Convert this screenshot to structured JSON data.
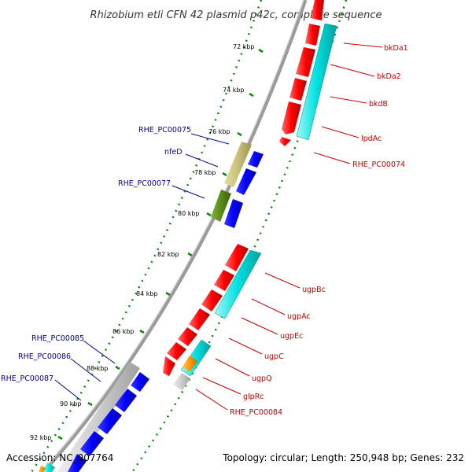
{
  "title": "Rhizobium etli CFN 42 plasmid p42c, complete sequence",
  "accession_label": "Accession: NC_007764",
  "summary_label": "Topology: circular; Length: 250,948 bp; Genes: 232",
  "colors": {
    "forward_gene": "#ff0000",
    "forward_cds": "#00e5e5",
    "reverse_gene": "#0000ff",
    "reverse_cds_olive": "#c8c07a",
    "reverse_cds_green": "#5a8a1a",
    "reverse_cds_gray": "#c8c8c8",
    "other_cds": "#ff9900",
    "right_label": "#cc0000",
    "left_label": "#000099",
    "backbone": "#888888",
    "tick_dotted": "#008800"
  },
  "scale_ticks": [
    "72 kbp",
    "74 kbp",
    "76 kbp",
    "78 kbp",
    "80 kbp",
    "82 kbp",
    "84 kbp",
    "86 kbp",
    "88 kbp",
    "90 kbp",
    "92 kbp"
  ],
  "forward_genes": [
    {
      "name": "bkDa1"
    },
    {
      "name": "bkDa2"
    },
    {
      "name": "bkdB"
    },
    {
      "name": "lpdAc"
    },
    {
      "name": "RHE_PC00074"
    },
    {
      "name": "ugpBc"
    },
    {
      "name": "ugpAc"
    },
    {
      "name": "ugpEc"
    },
    {
      "name": "ugpC"
    },
    {
      "name": "ugpQ"
    },
    {
      "name": "glpRc"
    },
    {
      "name": "RHE_PC00084"
    }
  ],
  "reverse_genes": [
    {
      "name": "RHE_PC00075"
    },
    {
      "name": "nfeD"
    },
    {
      "name": "RHE_PC00077"
    },
    {
      "name": "RHE_PC00085"
    },
    {
      "name": "RHE_PC00086"
    },
    {
      "name": "RHE_PC00087"
    }
  ]
}
